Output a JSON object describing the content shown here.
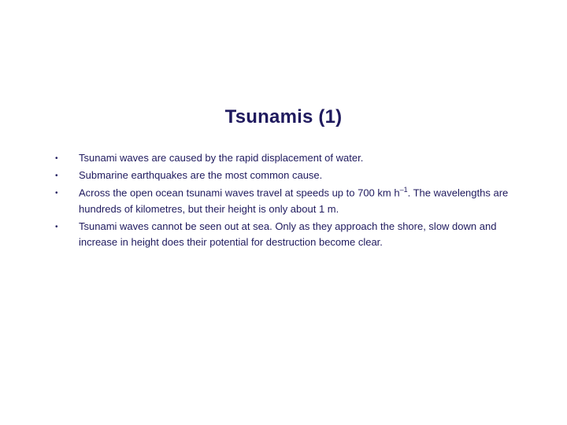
{
  "slide": {
    "title": "Tsunamis (1)",
    "title_color": "#1f1a5e",
    "title_fontsize": 24,
    "body_color": "#1f1a5e",
    "body_fontsize": 13,
    "background_color": "#ffffff",
    "bullets": [
      {
        "text": "Tsunami waves are caused by the rapid displacement of water."
      },
      {
        "text": "Submarine earthquakes are the most common cause."
      },
      {
        "text_html": "Across the open ocean tsunami waves travel at speeds up to 700 km h<span class=\"sup\">–1</span>. The wavelengths are hundreds of kilometres, but their height is only about 1 m."
      },
      {
        "text": "Tsunami waves cannot be seen out at sea. Only as they approach the shore, slow down and increase in height does their potential for destruction become clear."
      }
    ],
    "bullet_marker": "•"
  }
}
